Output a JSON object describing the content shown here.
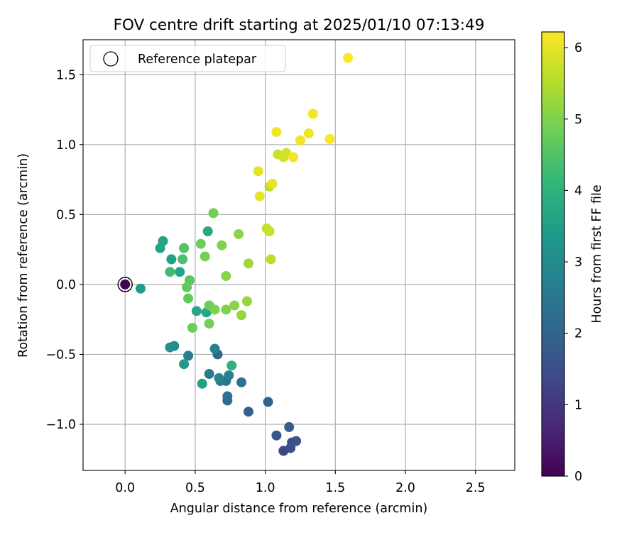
{
  "chart_data": {
    "type": "scatter",
    "title": "FOV centre drift starting at 2025/01/10 07:13:49",
    "xlabel": "Angular distance from reference (arcmin)",
    "ylabel": "Rotation from reference (arcmin)",
    "xlim": [
      -0.3,
      2.78
    ],
    "ylim": [
      -1.33,
      1.75
    ],
    "xticks": [
      0.0,
      0.5,
      1.0,
      1.5,
      2.0,
      2.5
    ],
    "xtick_labels": [
      "0.0",
      "0.5",
      "1.0",
      "1.5",
      "2.0",
      "2.5"
    ],
    "yticks": [
      -1.0,
      -0.5,
      0.0,
      0.5,
      1.0,
      1.5
    ],
    "ytick_labels": [
      "−1.0",
      "−0.5",
      "0.0",
      "0.5",
      "1.0",
      "1.5"
    ],
    "grid": true,
    "legend": {
      "placement": "top-left",
      "entries": [
        "Reference platepar"
      ]
    },
    "reference_point": {
      "x": 0.0,
      "y": 0.0,
      "hours": 0.0
    },
    "colorbar": {
      "label": "Hours from first FF file",
      "range": [
        0,
        6.22
      ],
      "ticks": [
        0,
        1,
        2,
        3,
        4,
        5,
        6
      ],
      "tick_labels": [
        "0",
        "1",
        "2",
        "3",
        "4",
        "5",
        "6"
      ],
      "colormap": "viridis",
      "colormap_stops": [
        "#440154",
        "#482878",
        "#3e4a89",
        "#31688e",
        "#26828e",
        "#1f9e89",
        "#35b779",
        "#6ece58",
        "#b5de2b",
        "#fde725"
      ]
    },
    "points": [
      {
        "x": 0.0,
        "y": 0.0,
        "h": 0.0
      },
      {
        "x": 1.13,
        "y": -1.19,
        "h": 1.3
      },
      {
        "x": 1.18,
        "y": -1.17,
        "h": 1.4
      },
      {
        "x": 1.19,
        "y": -1.13,
        "h": 1.5
      },
      {
        "x": 1.22,
        "y": -1.12,
        "h": 1.6
      },
      {
        "x": 1.08,
        "y": -1.08,
        "h": 1.7
      },
      {
        "x": 1.17,
        "y": -1.02,
        "h": 1.8
      },
      {
        "x": 0.88,
        "y": -0.91,
        "h": 1.9
      },
      {
        "x": 1.02,
        "y": -0.84,
        "h": 2.0
      },
      {
        "x": 0.66,
        "y": -0.5,
        "h": 2.0
      },
      {
        "x": 0.73,
        "y": -0.83,
        "h": 2.2
      },
      {
        "x": 0.73,
        "y": -0.8,
        "h": 2.3
      },
      {
        "x": 0.83,
        "y": -0.7,
        "h": 2.4
      },
      {
        "x": 0.72,
        "y": -0.69,
        "h": 2.4
      },
      {
        "x": 0.68,
        "y": -0.69,
        "h": 2.5
      },
      {
        "x": 0.6,
        "y": -0.64,
        "h": 2.6
      },
      {
        "x": 0.45,
        "y": -0.51,
        "h": 2.6
      },
      {
        "x": 0.64,
        "y": -0.46,
        "h": 2.7
      },
      {
        "x": 0.74,
        "y": -0.65,
        "h": 2.8
      },
      {
        "x": 0.67,
        "y": -0.67,
        "h": 2.9
      },
      {
        "x": 0.35,
        "y": -0.44,
        "h": 3.0
      },
      {
        "x": 0.32,
        "y": -0.45,
        "h": 3.1
      },
      {
        "x": 0.42,
        "y": -0.57,
        "h": 3.3
      },
      {
        "x": 0.11,
        "y": -0.03,
        "h": 3.4
      },
      {
        "x": 0.55,
        "y": -0.71,
        "h": 3.5
      },
      {
        "x": 0.27,
        "y": 0.31,
        "h": 3.6
      },
      {
        "x": 0.25,
        "y": 0.26,
        "h": 3.6
      },
      {
        "x": 0.33,
        "y": 0.18,
        "h": 3.5
      },
      {
        "x": 0.39,
        "y": 0.09,
        "h": 3.6
      },
      {
        "x": 0.59,
        "y": 0.38,
        "h": 3.7
      },
      {
        "x": 0.51,
        "y": -0.19,
        "h": 3.7
      },
      {
        "x": 0.58,
        "y": -0.2,
        "h": 3.7
      },
      {
        "x": 0.76,
        "y": -0.58,
        "h": 4.0
      },
      {
        "x": 0.32,
        "y": 0.09,
        "h": 4.3
      },
      {
        "x": 0.41,
        "y": 0.18,
        "h": 4.4
      },
      {
        "x": 0.42,
        "y": 0.26,
        "h": 4.5
      },
      {
        "x": 0.46,
        "y": 0.03,
        "h": 4.6
      },
      {
        "x": 0.44,
        "y": -0.02,
        "h": 4.7
      },
      {
        "x": 0.45,
        "y": -0.1,
        "h": 4.7
      },
      {
        "x": 0.48,
        "y": -0.31,
        "h": 4.8
      },
      {
        "x": 0.54,
        "y": 0.29,
        "h": 4.8
      },
      {
        "x": 0.57,
        "y": 0.2,
        "h": 4.9
      },
      {
        "x": 0.6,
        "y": -0.15,
        "h": 4.8
      },
      {
        "x": 0.6,
        "y": -0.28,
        "h": 4.9
      },
      {
        "x": 0.63,
        "y": 0.51,
        "h": 4.9
      },
      {
        "x": 0.64,
        "y": -0.18,
        "h": 5.0
      },
      {
        "x": 0.69,
        "y": 0.28,
        "h": 5.0
      },
      {
        "x": 0.72,
        "y": -0.18,
        "h": 5.0
      },
      {
        "x": 0.72,
        "y": 0.06,
        "h": 5.1
      },
      {
        "x": 0.78,
        "y": -0.15,
        "h": 5.1
      },
      {
        "x": 0.81,
        "y": 0.36,
        "h": 5.1
      },
      {
        "x": 0.83,
        "y": -0.22,
        "h": 5.2
      },
      {
        "x": 0.87,
        "y": -0.12,
        "h": 5.2
      },
      {
        "x": 0.88,
        "y": 0.15,
        "h": 5.3
      },
      {
        "x": 1.04,
        "y": 0.18,
        "h": 5.6
      },
      {
        "x": 1.03,
        "y": 0.38,
        "h": 5.7
      },
      {
        "x": 1.01,
        "y": 0.4,
        "h": 5.7
      },
      {
        "x": 1.03,
        "y": 0.7,
        "h": 5.6
      },
      {
        "x": 1.09,
        "y": 0.93,
        "h": 5.7
      },
      {
        "x": 1.13,
        "y": 0.91,
        "h": 5.8
      },
      {
        "x": 1.15,
        "y": 0.94,
        "h": 5.8
      },
      {
        "x": 0.95,
        "y": 0.81,
        "h": 6.0
      },
      {
        "x": 0.96,
        "y": 0.63,
        "h": 6.0
      },
      {
        "x": 1.05,
        "y": 0.72,
        "h": 6.0
      },
      {
        "x": 1.08,
        "y": 1.09,
        "h": 6.1
      },
      {
        "x": 1.2,
        "y": 0.91,
        "h": 6.1
      },
      {
        "x": 1.25,
        "y": 1.03,
        "h": 6.1
      },
      {
        "x": 1.31,
        "y": 1.08,
        "h": 6.1
      },
      {
        "x": 1.34,
        "y": 1.22,
        "h": 6.1
      },
      {
        "x": 1.46,
        "y": 1.04,
        "h": 6.2
      },
      {
        "x": 1.59,
        "y": 1.62,
        "h": 6.2
      }
    ]
  }
}
